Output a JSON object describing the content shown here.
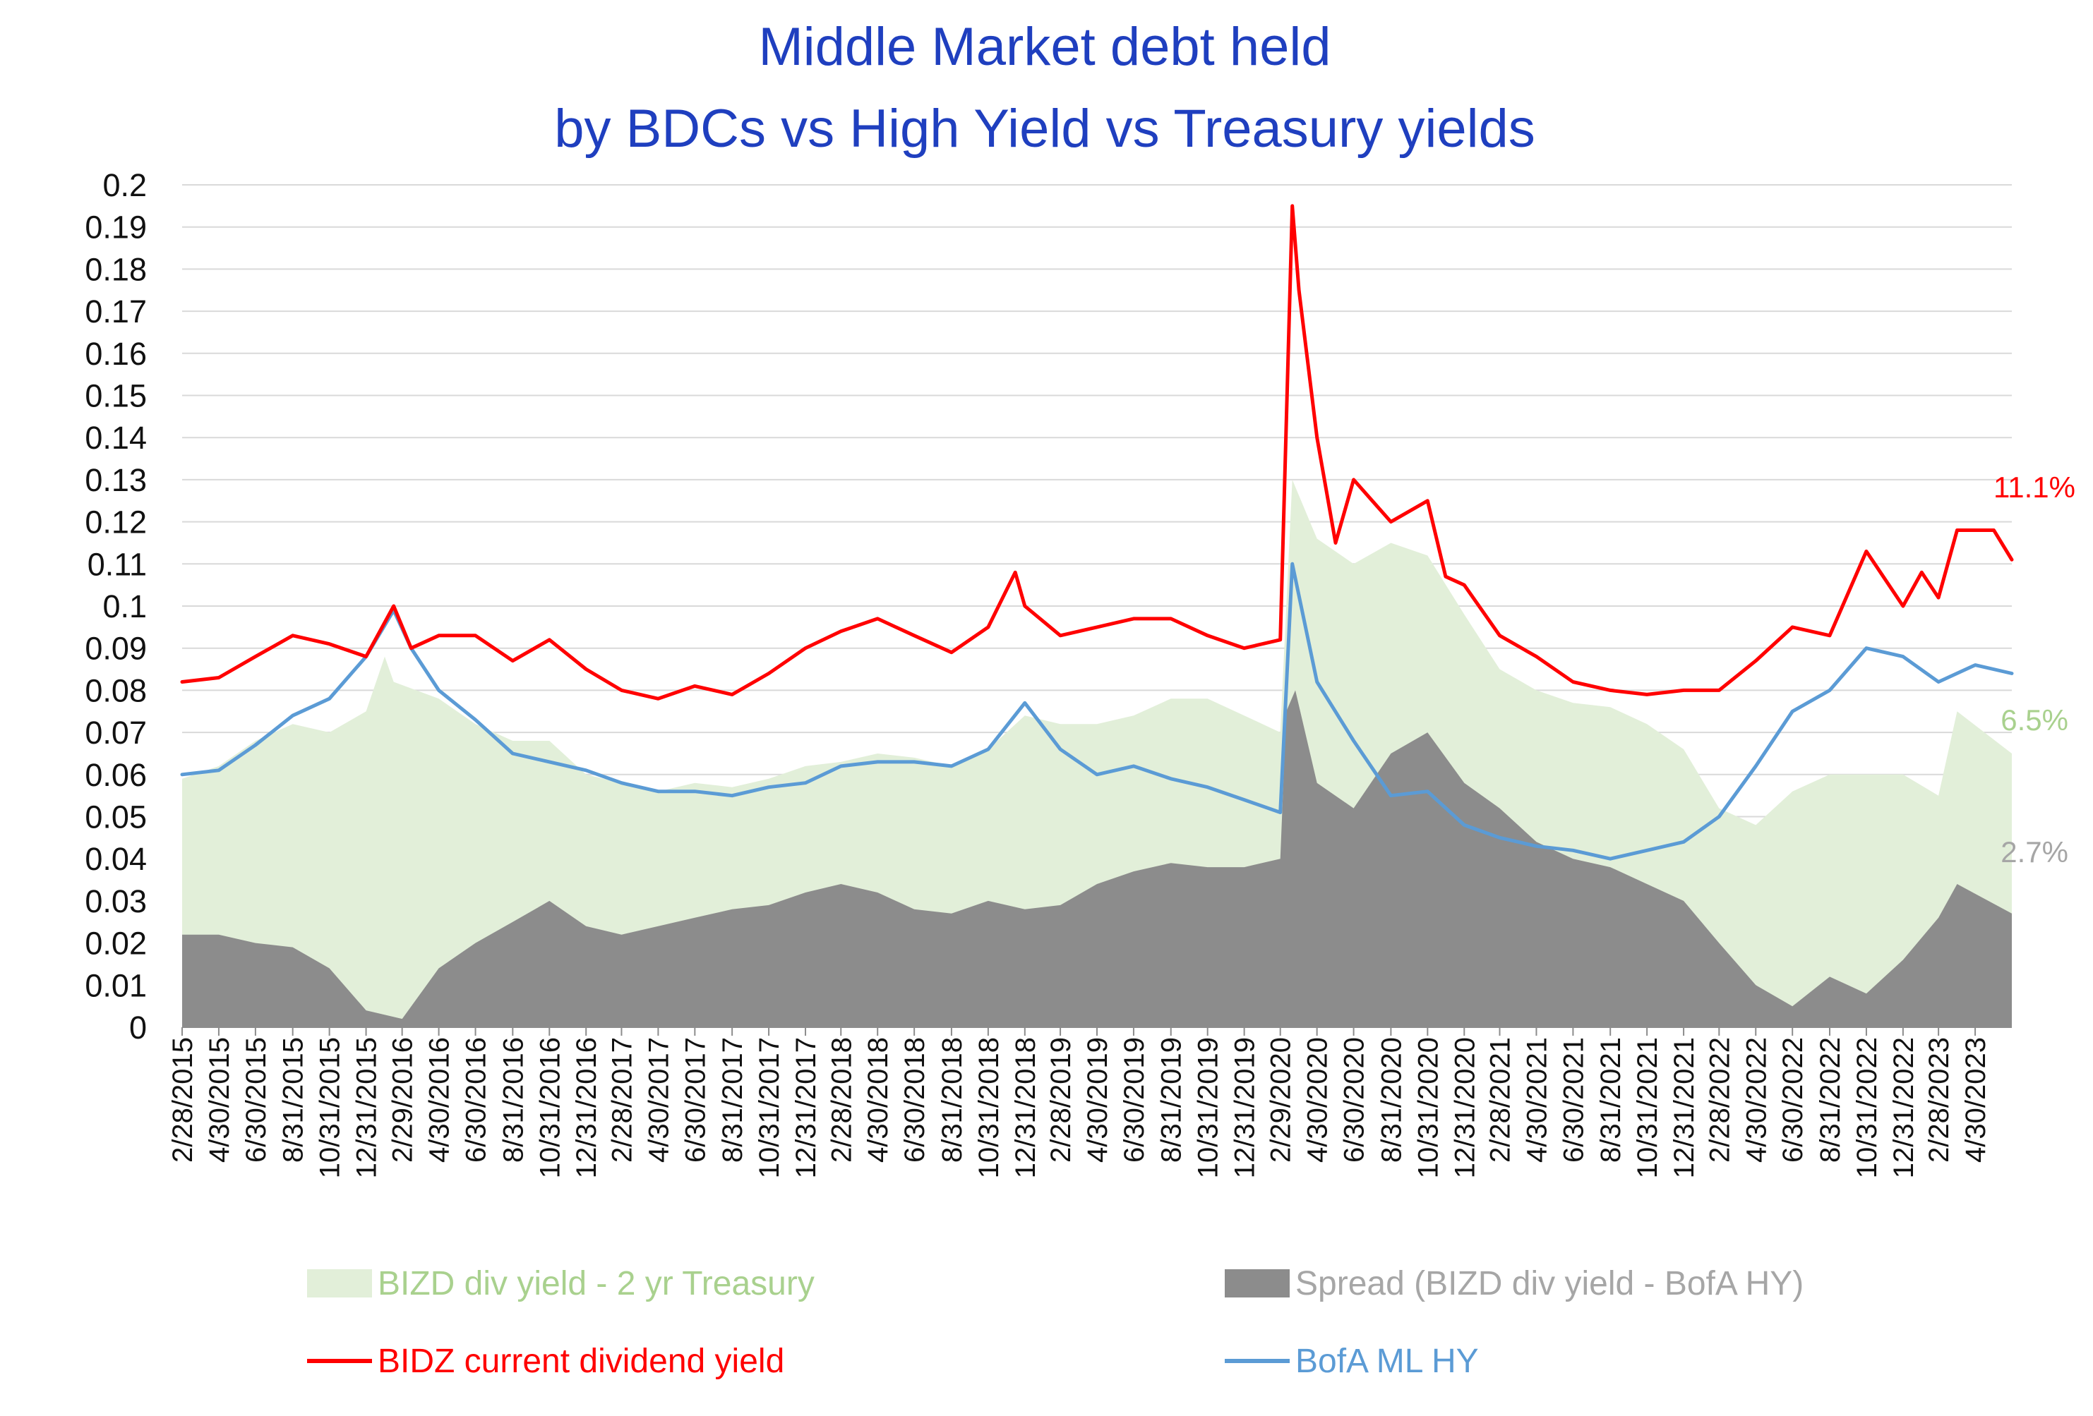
{
  "chart_data": {
    "type": "area",
    "title_lines": [
      "Middle Market debt held",
      "by BDCs vs High Yield vs Treasury yields"
    ],
    "xlabel": "",
    "ylabel": "",
    "ylim": [
      0,
      0.2
    ],
    "yticks": [
      "0",
      "0.01",
      "0.02",
      "0.03",
      "0.04",
      "0.05",
      "0.06",
      "0.07",
      "0.08",
      "0.09",
      "0.1",
      "0.11",
      "0.12",
      "0.13",
      "0.14",
      "0.15",
      "0.16",
      "0.17",
      "0.18",
      "0.19",
      "0.2"
    ],
    "xlim": [
      "2015-02-28",
      "2023-06-30"
    ],
    "xticks": [
      "2/28/2015",
      "4/30/2015",
      "6/30/2015",
      "8/31/2015",
      "10/31/2015",
      "12/31/2015",
      "2/29/2016",
      "4/30/2016",
      "6/30/2016",
      "8/31/2016",
      "10/31/2016",
      "12/31/2016",
      "2/28/2017",
      "4/30/2017",
      "6/30/2017",
      "8/31/2017",
      "10/31/2017",
      "12/31/2017",
      "2/28/2018",
      "4/30/2018",
      "6/30/2018",
      "8/31/2018",
      "10/31/2018",
      "12/31/2018",
      "2/28/2019",
      "4/30/2019",
      "6/30/2019",
      "8/31/2019",
      "10/31/2019",
      "12/31/2019",
      "2/29/2020",
      "4/30/2020",
      "6/30/2020",
      "8/31/2020",
      "10/31/2020",
      "12/31/2020",
      "2/28/2021",
      "4/30/2021",
      "6/30/2021",
      "8/31/2021",
      "10/31/2021",
      "12/31/2021",
      "2/28/2022",
      "4/30/2022",
      "6/30/2022",
      "8/31/2022",
      "10/31/2022",
      "12/31/2022",
      "2/28/2023",
      "4/30/2023"
    ],
    "grid": true,
    "legend_position": "bottom",
    "series": [
      {
        "name": "BIZD div yield - 2 yr Treasury",
        "kind": "area",
        "color": "#e2efd9",
        "label_color": "#a9d18e",
        "end_label": "6.5%",
        "points": [
          [
            "2015-02-28",
            0.059
          ],
          [
            "2015-04-30",
            0.062
          ],
          [
            "2015-06-30",
            0.068
          ],
          [
            "2015-08-31",
            0.072
          ],
          [
            "2015-10-31",
            0.07
          ],
          [
            "2015-12-31",
            0.075
          ],
          [
            "2016-01-31",
            0.088
          ],
          [
            "2016-02-15",
            0.082
          ],
          [
            "2016-04-30",
            0.078
          ],
          [
            "2016-06-30",
            0.072
          ],
          [
            "2016-08-31",
            0.068
          ],
          [
            "2016-10-31",
            0.068
          ],
          [
            "2016-12-31",
            0.06
          ],
          [
            "2017-02-28",
            0.058
          ],
          [
            "2017-04-30",
            0.056
          ],
          [
            "2017-06-30",
            0.058
          ],
          [
            "2017-08-31",
            0.057
          ],
          [
            "2017-10-31",
            0.059
          ],
          [
            "2017-12-31",
            0.062
          ],
          [
            "2018-02-28",
            0.063
          ],
          [
            "2018-04-30",
            0.065
          ],
          [
            "2018-06-30",
            0.064
          ],
          [
            "2018-08-31",
            0.062
          ],
          [
            "2018-10-31",
            0.066
          ],
          [
            "2018-12-31",
            0.074
          ],
          [
            "2019-02-28",
            0.072
          ],
          [
            "2019-04-30",
            0.072
          ],
          [
            "2019-06-30",
            0.074
          ],
          [
            "2019-08-31",
            0.078
          ],
          [
            "2019-10-31",
            0.078
          ],
          [
            "2019-12-31",
            0.074
          ],
          [
            "2020-02-29",
            0.07
          ],
          [
            "2020-03-20",
            0.13
          ],
          [
            "2020-04-30",
            0.116
          ],
          [
            "2020-06-30",
            0.11
          ],
          [
            "2020-08-31",
            0.115
          ],
          [
            "2020-10-31",
            0.112
          ],
          [
            "2020-12-31",
            0.098
          ],
          [
            "2021-02-28",
            0.085
          ],
          [
            "2021-04-30",
            0.08
          ],
          [
            "2021-06-30",
            0.077
          ],
          [
            "2021-08-31",
            0.076
          ],
          [
            "2021-10-31",
            0.072
          ],
          [
            "2021-12-31",
            0.066
          ],
          [
            "2022-02-28",
            0.052
          ],
          [
            "2022-04-30",
            0.048
          ],
          [
            "2022-06-30",
            0.056
          ],
          [
            "2022-08-31",
            0.06
          ],
          [
            "2022-10-31",
            0.06
          ],
          [
            "2022-12-31",
            0.06
          ],
          [
            "2023-02-28",
            0.055
          ],
          [
            "2023-03-31",
            0.075
          ],
          [
            "2023-06-30",
            0.065
          ]
        ]
      },
      {
        "name": "Spread (BIZD div yield - BofA HY)",
        "kind": "area",
        "color": "#8c8c8c",
        "label_color": "#a6a6a6",
        "end_label": "2.7%",
        "points": [
          [
            "2015-02-28",
            0.022
          ],
          [
            "2015-04-30",
            0.022
          ],
          [
            "2015-06-30",
            0.02
          ],
          [
            "2015-08-31",
            0.019
          ],
          [
            "2015-10-31",
            0.014
          ],
          [
            "2015-12-31",
            0.004
          ],
          [
            "2016-02-29",
            0.002
          ],
          [
            "2016-04-30",
            0.014
          ],
          [
            "2016-06-30",
            0.02
          ],
          [
            "2016-08-31",
            0.025
          ],
          [
            "2016-10-31",
            0.03
          ],
          [
            "2016-12-31",
            0.024
          ],
          [
            "2017-02-28",
            0.022
          ],
          [
            "2017-04-30",
            0.024
          ],
          [
            "2017-06-30",
            0.026
          ],
          [
            "2017-08-31",
            0.028
          ],
          [
            "2017-10-31",
            0.029
          ],
          [
            "2017-12-31",
            0.032
          ],
          [
            "2018-02-28",
            0.034
          ],
          [
            "2018-04-30",
            0.032
          ],
          [
            "2018-06-30",
            0.028
          ],
          [
            "2018-08-31",
            0.027
          ],
          [
            "2018-10-31",
            0.03
          ],
          [
            "2018-12-31",
            0.028
          ],
          [
            "2019-02-28",
            0.029
          ],
          [
            "2019-04-30",
            0.034
          ],
          [
            "2019-06-30",
            0.037
          ],
          [
            "2019-08-31",
            0.039
          ],
          [
            "2019-10-31",
            0.038
          ],
          [
            "2019-12-31",
            0.038
          ],
          [
            "2020-02-29",
            0.04
          ],
          [
            "2020-03-10",
            0.075
          ],
          [
            "2020-03-25",
            0.08
          ],
          [
            "2020-04-30",
            0.058
          ],
          [
            "2020-06-30",
            0.052
          ],
          [
            "2020-08-31",
            0.065
          ],
          [
            "2020-10-31",
            0.07
          ],
          [
            "2020-12-31",
            0.058
          ],
          [
            "2021-02-28",
            0.052
          ],
          [
            "2021-04-30",
            0.044
          ],
          [
            "2021-06-30",
            0.04
          ],
          [
            "2021-08-31",
            0.038
          ],
          [
            "2021-10-31",
            0.034
          ],
          [
            "2021-12-31",
            0.03
          ],
          [
            "2022-02-28",
            0.02
          ],
          [
            "2022-04-30",
            0.01
          ],
          [
            "2022-06-30",
            0.005
          ],
          [
            "2022-08-31",
            0.012
          ],
          [
            "2022-10-31",
            0.008
          ],
          [
            "2022-12-31",
            0.016
          ],
          [
            "2023-02-28",
            0.026
          ],
          [
            "2023-03-31",
            0.034
          ],
          [
            "2023-06-30",
            0.027
          ]
        ]
      },
      {
        "name": "BIDZ current dividend yield",
        "kind": "line",
        "color": "#ff0000",
        "label_color": "#ff0000",
        "end_label": "11.1%",
        "points": [
          [
            "2015-02-28",
            0.082
          ],
          [
            "2015-04-30",
            0.083
          ],
          [
            "2015-06-30",
            0.088
          ],
          [
            "2015-08-31",
            0.093
          ],
          [
            "2015-10-31",
            0.091
          ],
          [
            "2015-12-31",
            0.088
          ],
          [
            "2016-02-15",
            0.1
          ],
          [
            "2016-03-15",
            0.09
          ],
          [
            "2016-04-30",
            0.093
          ],
          [
            "2016-06-30",
            0.093
          ],
          [
            "2016-08-31",
            0.087
          ],
          [
            "2016-10-31",
            0.092
          ],
          [
            "2016-12-31",
            0.085
          ],
          [
            "2017-02-28",
            0.08
          ],
          [
            "2017-04-30",
            0.078
          ],
          [
            "2017-06-30",
            0.081
          ],
          [
            "2017-08-31",
            0.079
          ],
          [
            "2017-10-31",
            0.084
          ],
          [
            "2017-12-31",
            0.09
          ],
          [
            "2018-02-28",
            0.094
          ],
          [
            "2018-04-30",
            0.097
          ],
          [
            "2018-06-30",
            0.093
          ],
          [
            "2018-08-31",
            0.089
          ],
          [
            "2018-10-31",
            0.095
          ],
          [
            "2018-12-15",
            0.108
          ],
          [
            "2018-12-31",
            0.1
          ],
          [
            "2019-02-28",
            0.093
          ],
          [
            "2019-04-30",
            0.095
          ],
          [
            "2019-06-30",
            0.097
          ],
          [
            "2019-08-31",
            0.097
          ],
          [
            "2019-10-31",
            0.093
          ],
          [
            "2019-12-31",
            0.09
          ],
          [
            "2020-02-29",
            0.092
          ],
          [
            "2020-03-20",
            0.195
          ],
          [
            "2020-03-31",
            0.175
          ],
          [
            "2020-04-30",
            0.14
          ],
          [
            "2020-05-31",
            0.115
          ],
          [
            "2020-06-30",
            0.13
          ],
          [
            "2020-07-31",
            0.125
          ],
          [
            "2020-08-31",
            0.12
          ],
          [
            "2020-10-31",
            0.125
          ],
          [
            "2020-11-30",
            0.107
          ],
          [
            "2020-12-31",
            0.105
          ],
          [
            "2021-02-28",
            0.093
          ],
          [
            "2021-04-30",
            0.088
          ],
          [
            "2021-06-30",
            0.082
          ],
          [
            "2021-08-31",
            0.08
          ],
          [
            "2021-10-31",
            0.079
          ],
          [
            "2021-12-31",
            0.08
          ],
          [
            "2022-02-28",
            0.08
          ],
          [
            "2022-04-30",
            0.087
          ],
          [
            "2022-06-30",
            0.095
          ],
          [
            "2022-08-31",
            0.093
          ],
          [
            "2022-10-31",
            0.113
          ],
          [
            "2022-12-31",
            0.1
          ],
          [
            "2023-01-31",
            0.108
          ],
          [
            "2023-02-28",
            0.102
          ],
          [
            "2023-03-31",
            0.118
          ],
          [
            "2023-05-31",
            0.118
          ],
          [
            "2023-06-30",
            0.111
          ]
        ]
      },
      {
        "name": "BofA ML HY",
        "kind": "line",
        "color": "#5b9bd5",
        "label_color": "#5b9bd5",
        "end_label": "",
        "points": [
          [
            "2015-02-28",
            0.06
          ],
          [
            "2015-04-30",
            0.061
          ],
          [
            "2015-06-30",
            0.067
          ],
          [
            "2015-08-31",
            0.074
          ],
          [
            "2015-10-31",
            0.078
          ],
          [
            "2015-12-31",
            0.088
          ],
          [
            "2016-02-15",
            0.099
          ],
          [
            "2016-03-15",
            0.09
          ],
          [
            "2016-04-30",
            0.08
          ],
          [
            "2016-06-30",
            0.073
          ],
          [
            "2016-08-31",
            0.065
          ],
          [
            "2016-10-31",
            0.063
          ],
          [
            "2016-12-31",
            0.061
          ],
          [
            "2017-02-28",
            0.058
          ],
          [
            "2017-04-30",
            0.056
          ],
          [
            "2017-06-30",
            0.056
          ],
          [
            "2017-08-31",
            0.055
          ],
          [
            "2017-10-31",
            0.057
          ],
          [
            "2017-12-31",
            0.058
          ],
          [
            "2018-02-28",
            0.062
          ],
          [
            "2018-04-30",
            0.063
          ],
          [
            "2018-06-30",
            0.063
          ],
          [
            "2018-08-31",
            0.062
          ],
          [
            "2018-10-31",
            0.066
          ],
          [
            "2018-12-31",
            0.077
          ],
          [
            "2019-02-28",
            0.066
          ],
          [
            "2019-04-30",
            0.06
          ],
          [
            "2019-06-30",
            0.062
          ],
          [
            "2019-08-31",
            0.059
          ],
          [
            "2019-10-31",
            0.057
          ],
          [
            "2019-12-31",
            0.054
          ],
          [
            "2020-02-29",
            0.051
          ],
          [
            "2020-03-20",
            0.11
          ],
          [
            "2020-04-30",
            0.082
          ],
          [
            "2020-06-30",
            0.068
          ],
          [
            "2020-08-31",
            0.055
          ],
          [
            "2020-10-31",
            0.056
          ],
          [
            "2020-12-31",
            0.048
          ],
          [
            "2021-02-28",
            0.045
          ],
          [
            "2021-04-30",
            0.043
          ],
          [
            "2021-06-30",
            0.042
          ],
          [
            "2021-08-31",
            0.04
          ],
          [
            "2021-10-31",
            0.042
          ],
          [
            "2021-12-31",
            0.044
          ],
          [
            "2022-02-28",
            0.05
          ],
          [
            "2022-04-30",
            0.062
          ],
          [
            "2022-06-30",
            0.075
          ],
          [
            "2022-08-31",
            0.08
          ],
          [
            "2022-10-31",
            0.09
          ],
          [
            "2022-12-31",
            0.088
          ],
          [
            "2023-02-28",
            0.082
          ],
          [
            "2023-04-30",
            0.086
          ],
          [
            "2023-06-30",
            0.084
          ]
        ]
      }
    ]
  }
}
